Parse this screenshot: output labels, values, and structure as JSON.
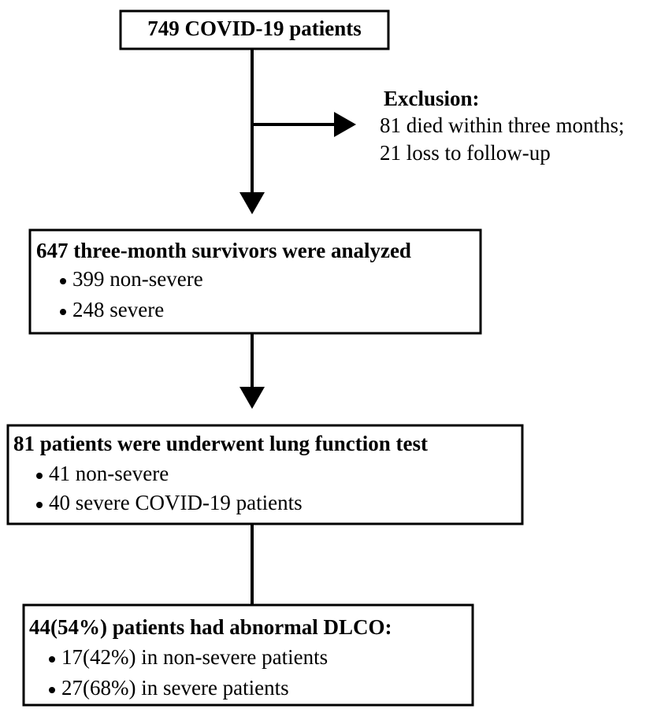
{
  "nodes": [
    {
      "title": "749 COVID-19 patients"
    },
    {
      "title": "647 three-month survivors were analyzed",
      "items": [
        "399 non-severe",
        "248 severe"
      ]
    },
    {
      "title": "81 patients were underwent lung function test",
      "items": [
        "41 non-severe",
        "40 severe COVID-19 patients"
      ]
    },
    {
      "title": "44(54%) patients had abnormal DLCO:",
      "items": [
        "17(42%) in non-severe patients",
        "27(68%) in severe patients"
      ]
    }
  ],
  "exclusion": {
    "title": "Exclusion:",
    "items": [
      "81 died within three months;",
      "21 loss to follow-up"
    ]
  }
}
